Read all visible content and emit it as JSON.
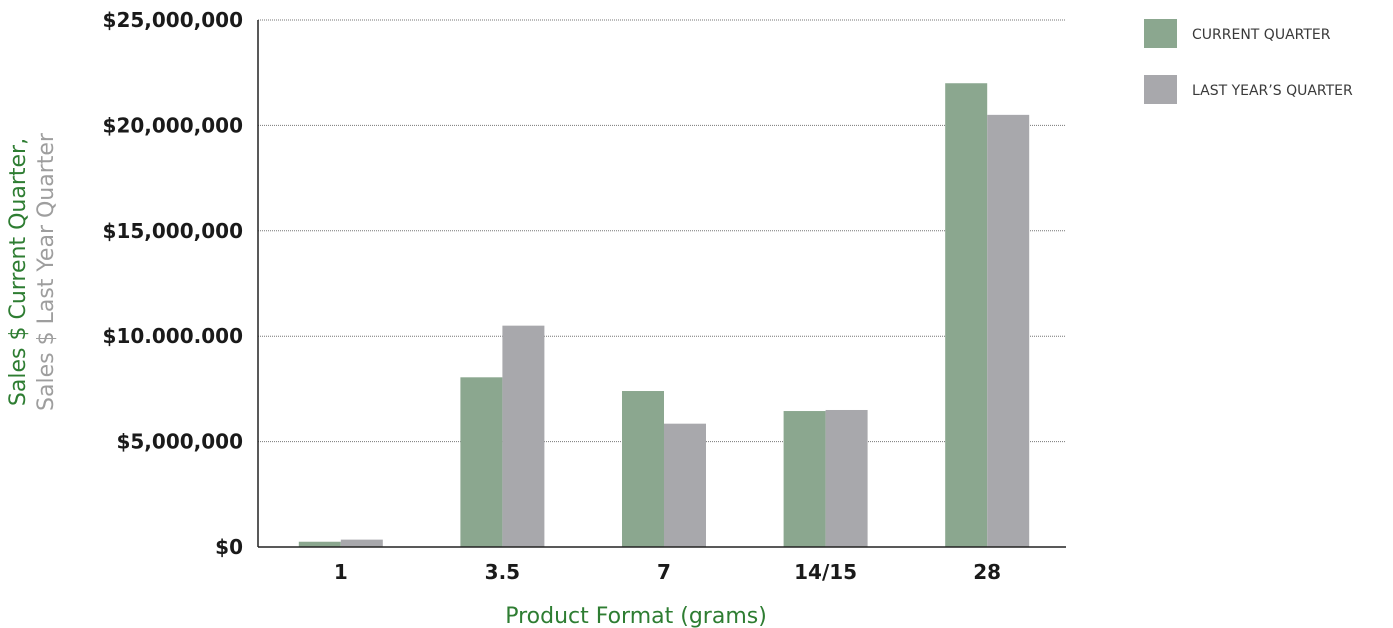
{
  "chart_data": {
    "type": "bar",
    "categories": [
      "1",
      "3.5",
      "7",
      "14/15",
      "28"
    ],
    "series": [
      {
        "name": "CURRENT QUARTER",
        "color": "#8ba78f",
        "values": [
          250000,
          8050000,
          7400000,
          6450000,
          22000000
        ]
      },
      {
        "name": "LAST YEAR’S QUARTER",
        "color": "#a8a8ac",
        "values": [
          350000,
          10500000,
          5850000,
          6500000,
          20500000
        ]
      }
    ],
    "yticks": [
      {
        "value": 0,
        "label": "$0"
      },
      {
        "value": 5000000,
        "label": "$5,000,000"
      },
      {
        "value": 10000000,
        "label": "$10.000.000"
      },
      {
        "value": 15000000,
        "label": "$15,000,000"
      },
      {
        "value": 20000000,
        "label": "$20,000,000"
      },
      {
        "value": 25000000,
        "label": "$25,000,000"
      }
    ],
    "ylim": [
      0,
      25000000
    ],
    "xlabel": "Product Format (grams)",
    "ylabel_line1": "Sales $ Current Quarter,",
    "ylabel_line2": "Sales $ Last Year Quarter",
    "xlabel_color": "#2e7d32",
    "ylabel_line1_color": "#2e7d32",
    "ylabel_line2_color": "#9e9e9e",
    "grid": true,
    "legend_position": "top-right"
  }
}
